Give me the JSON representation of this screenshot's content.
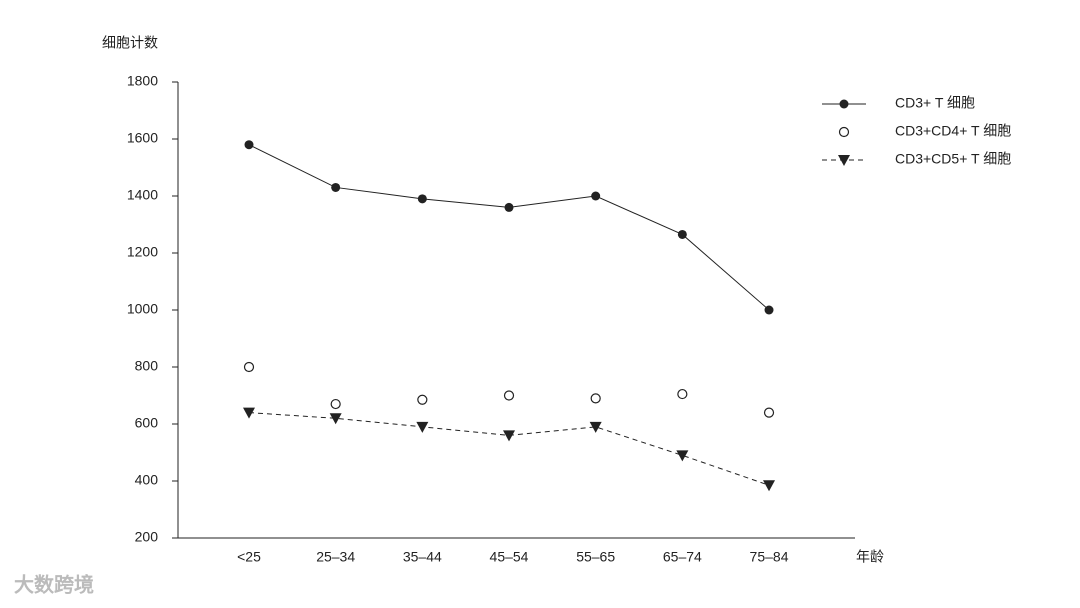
{
  "chart_data": {
    "type": "line",
    "y_label": "细胞计数",
    "x_label": "年龄",
    "categories": [
      "<25",
      "25–34",
      "35–44",
      "45–54",
      "55–65",
      "65–74",
      "75–84"
    ],
    "series": [
      {
        "name": "CD3+ T 细胞",
        "color": "#222222",
        "line": "solid",
        "marker": "circle-filled",
        "values": [
          1580,
          1430,
          1390,
          1360,
          1400,
          1265,
          1000
        ]
      },
      {
        "name": "CD3+CD4+ T 细胞",
        "color": "#222222",
        "line": "none",
        "marker": "circle-open",
        "values": [
          800,
          670,
          685,
          700,
          690,
          705,
          640
        ]
      },
      {
        "name": "CD3+CD5+ T 细胞",
        "color": "#222222",
        "line": "dashed",
        "marker": "triangle",
        "values": [
          640,
          620,
          590,
          560,
          590,
          490,
          385
        ]
      }
    ],
    "ylim": [
      200,
      1800
    ],
    "yticks": [
      200,
      400,
      600,
      800,
      1000,
      1200,
      1400,
      1600,
      1800
    ],
    "grid": false,
    "legend": "upper right",
    "watermark": "大数跨境"
  }
}
